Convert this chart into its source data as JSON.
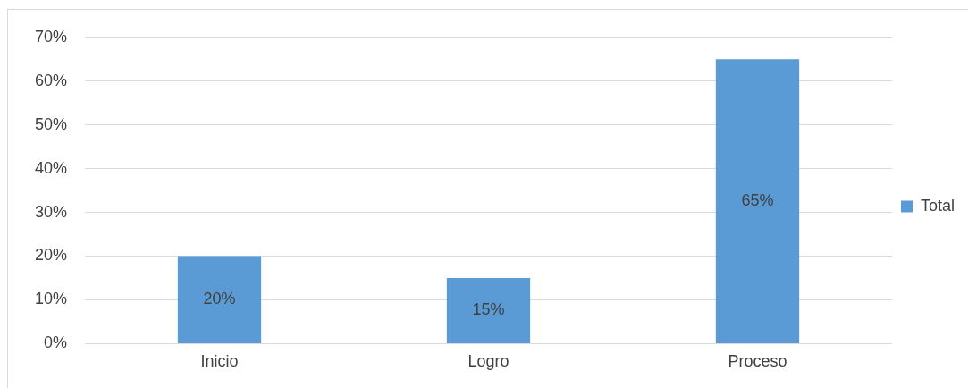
{
  "chart_data": {
    "type": "bar",
    "categories": [
      "Inicio",
      "Logro",
      "Proceso"
    ],
    "series": [
      {
        "name": "Total",
        "color": "#5b9bd5",
        "values": [
          20,
          15,
          65
        ],
        "value_labels": [
          "20%",
          "15%",
          "65%"
        ]
      }
    ],
    "ylim": [
      0,
      70
    ],
    "yticks": [
      {
        "value": 0,
        "label": "0%"
      },
      {
        "value": 10,
        "label": "10%"
      },
      {
        "value": 20,
        "label": "20%"
      },
      {
        "value": 30,
        "label": "30%"
      },
      {
        "value": 40,
        "label": "40%"
      },
      {
        "value": 50,
        "label": "50%"
      },
      {
        "value": 60,
        "label": "60%"
      },
      {
        "value": 70,
        "label": "70%"
      }
    ],
    "grid": "y",
    "legend": "right"
  }
}
